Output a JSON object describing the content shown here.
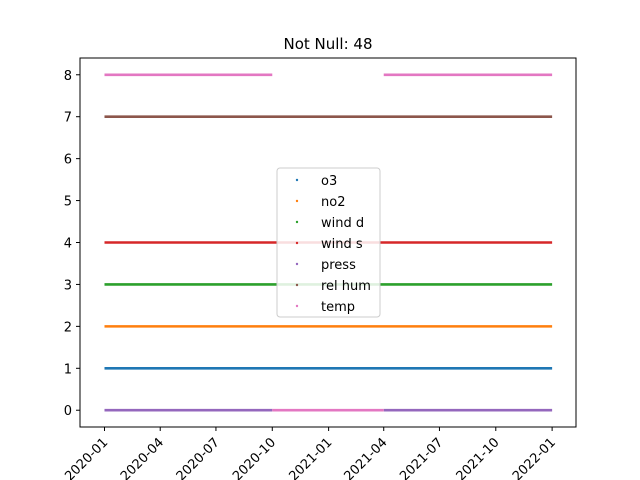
{
  "chart_data": {
    "type": "scatter",
    "title": "Not Null: 48",
    "xlabel": "",
    "ylabel": "",
    "xlim": [
      "2019-11-22",
      "2022-02-09"
    ],
    "ylim": [
      -0.4,
      8.4
    ],
    "yticks": [
      0,
      1,
      2,
      3,
      4,
      5,
      6,
      7,
      8
    ],
    "xticks": [
      "2020-01",
      "2020-04",
      "2020-07",
      "2020-10",
      "2021-01",
      "2021-04",
      "2021-07",
      "2021-10",
      "2022-01"
    ],
    "xtick_rotation_deg": 45,
    "grid": false,
    "legend_position": "center",
    "series": [
      {
        "name": "o3",
        "color": "#1f77b4",
        "y": 1,
        "segments": [
          [
            "2020-01-01",
            "2022-01-01"
          ]
        ]
      },
      {
        "name": "no2",
        "color": "#ff7f0e",
        "y": 2,
        "segments": [
          [
            "2020-01-01",
            "2022-01-01"
          ]
        ]
      },
      {
        "name": "wind d",
        "color": "#2ca02c",
        "y": 3,
        "segments": [
          [
            "2020-01-01",
            "2022-01-01"
          ]
        ]
      },
      {
        "name": "wind s",
        "color": "#d62728",
        "y": 4,
        "segments": [
          [
            "2020-01-01",
            "2022-01-01"
          ]
        ]
      },
      {
        "name": "press",
        "color": "#9467bd",
        "y": 0,
        "segments": [
          [
            "2020-01-01",
            "2020-10-01"
          ],
          [
            "2021-04-01",
            "2022-01-01"
          ]
        ]
      },
      {
        "name": "rel hum",
        "color": "#8c564b",
        "y": 7,
        "segments": [
          [
            "2020-01-01",
            "2022-01-01"
          ]
        ]
      },
      {
        "name": "temp",
        "color": "#e377c2",
        "y": 8,
        "segments": [
          [
            "2020-01-01",
            "2020-10-01"
          ],
          [
            "2021-04-01",
            "2022-01-01"
          ]
        ]
      },
      {
        "name": "",
        "color": "#e377c2",
        "y": 0,
        "segments": [
          [
            "2020-10-01",
            "2021-04-01"
          ]
        ]
      }
    ]
  }
}
